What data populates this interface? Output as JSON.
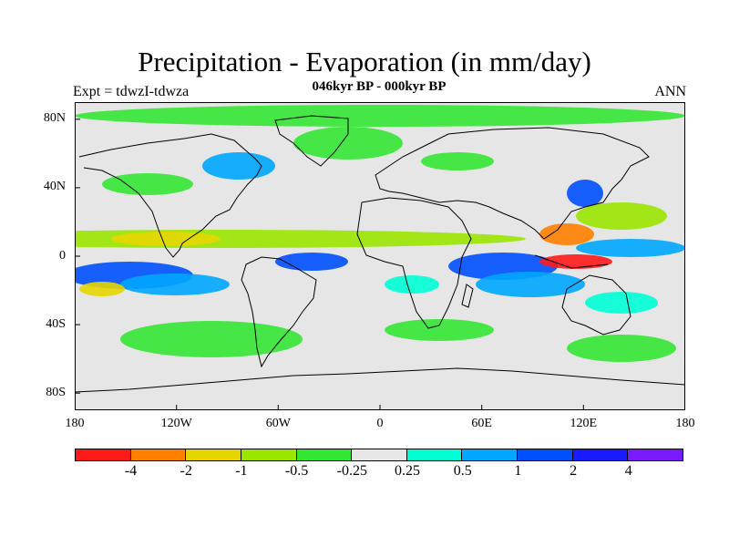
{
  "header": {
    "title": "Precipitation - Evaporation (in mm/day)",
    "subtitle": "046kyr BP - 000kyr BP",
    "left_label": "Expt = tdwzI-tdwza",
    "right_label": "ANN"
  },
  "map": {
    "projection": "cylindrical equidistant",
    "lon_range": [
      -180,
      180
    ],
    "lat_range": [
      -90,
      90
    ],
    "background_color": "#e6e6e6",
    "coastline_color": "#000000",
    "lat_ticks": [
      "80N",
      "40N",
      "0",
      "40S",
      "80S"
    ],
    "lon_ticks": [
      "180",
      "120W",
      "60W",
      "0",
      "60E",
      "120E",
      "180"
    ]
  },
  "colorbar": {
    "colors": [
      "#ff1a1a",
      "#ff8000",
      "#e6d600",
      "#9ae600",
      "#33e633",
      "#e6e6e6",
      "#00ffd5",
      "#00a6ff",
      "#0050ff",
      "#1a1aff",
      "#7a1aff"
    ],
    "labels": [
      "-4",
      "-2",
      "-1",
      "-0.5",
      "-0.25",
      "0.25",
      "0.5",
      "1",
      "2",
      "4"
    ]
  }
}
